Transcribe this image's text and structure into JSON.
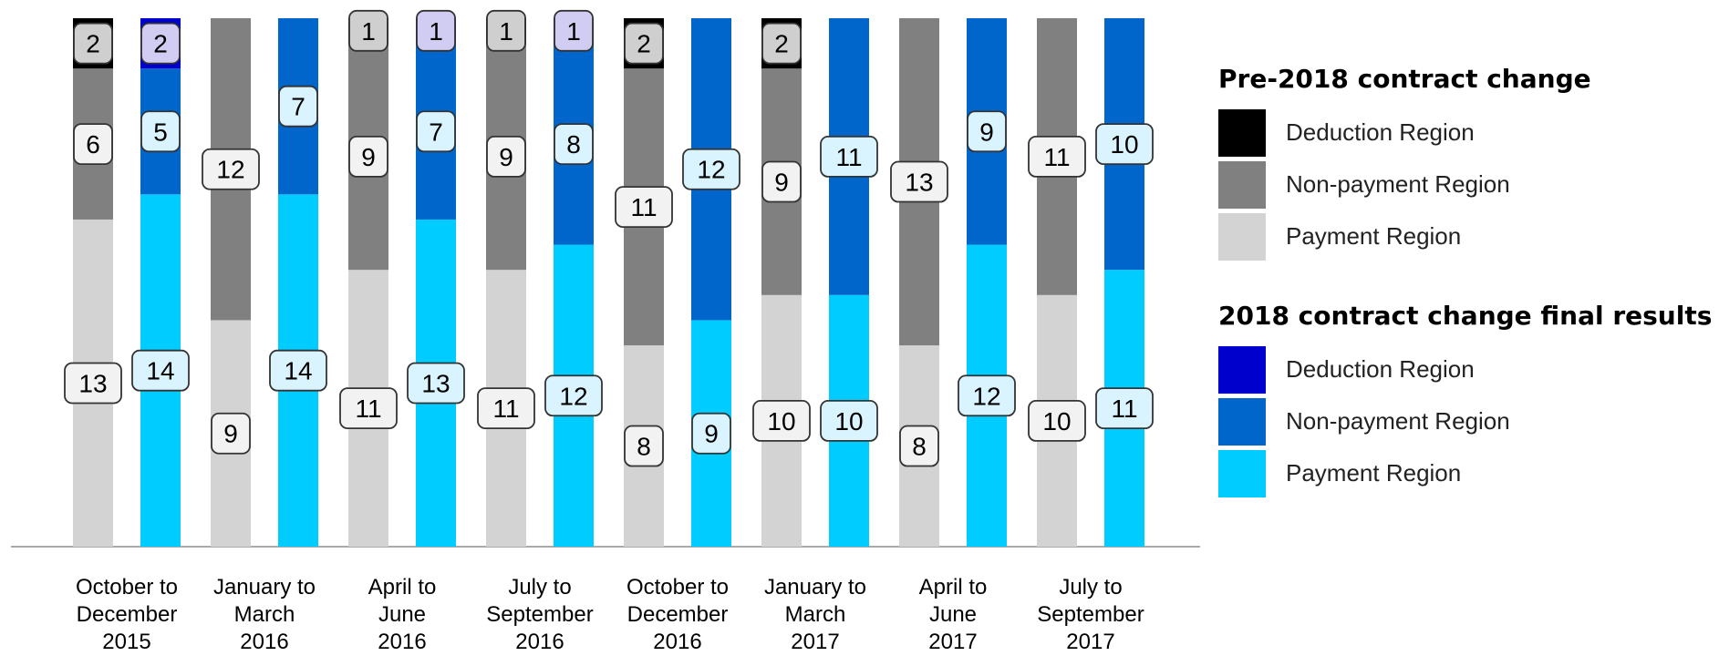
{
  "chart_data": {
    "type": "bar",
    "stacked": true,
    "categories": [
      "October to December 2015",
      "January to March 2016",
      "April to June 2016",
      "July to September 2016",
      "October to December 2016",
      "January to March 2017",
      "April to June 2017",
      "July to September 2017"
    ],
    "category_lines": [
      [
        "October to",
        "December",
        "2015"
      ],
      [
        "January to",
        "March",
        "2016"
      ],
      [
        "April to",
        "June",
        "2016"
      ],
      [
        "July to",
        "September",
        "2016"
      ],
      [
        "October to",
        "December",
        "2016"
      ],
      [
        "January to",
        "March",
        "2017"
      ],
      [
        "April to",
        "June",
        "2017"
      ],
      [
        "July to",
        "September",
        "2017"
      ]
    ],
    "groups": [
      {
        "title": "Pre-2018 contract change",
        "series": [
          {
            "name": "Deduction Region",
            "color": "#000000",
            "values": [
              2,
              0,
              1,
              1,
              2,
              2,
              0,
              0
            ]
          },
          {
            "name": "Non-payment Region",
            "color": "#808080",
            "values": [
              6,
              12,
              9,
              9,
              11,
              9,
              13,
              11
            ]
          },
          {
            "name": "Payment Region",
            "color": "#d3d3d3",
            "values": [
              13,
              9,
              11,
              11,
              8,
              10,
              8,
              10
            ]
          }
        ]
      },
      {
        "title": "2018 contract change final results",
        "series": [
          {
            "name": "Deduction Region",
            "color": "#0000cc",
            "values": [
              2,
              0,
              1,
              1,
              0,
              0,
              0,
              0
            ]
          },
          {
            "name": "Non-payment Region",
            "color": "#0066cc",
            "values": [
              5,
              7,
              7,
              8,
              12,
              11,
              9,
              10
            ]
          },
          {
            "name": "Payment Region",
            "color": "#00ccff",
            "values": [
              14,
              14,
              13,
              12,
              9,
              10,
              12,
              11
            ]
          }
        ]
      }
    ],
    "ylim": [
      0,
      21
    ],
    "legend_position": "right",
    "grid": false
  }
}
